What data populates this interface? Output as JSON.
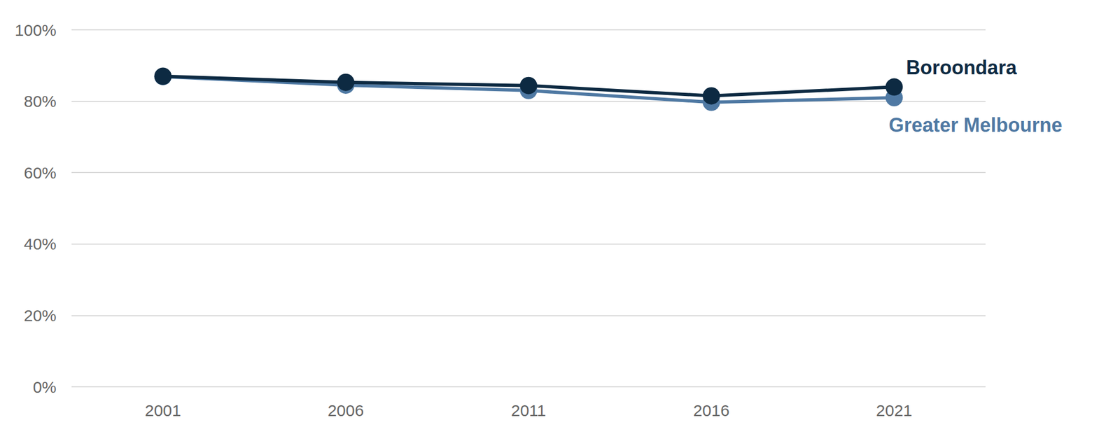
{
  "chart_data": {
    "type": "line",
    "categories": [
      "2001",
      "2006",
      "2011",
      "2016",
      "2021"
    ],
    "series": [
      {
        "name": "Boroondara",
        "color": "#0d2a42",
        "values": [
          87.0,
          85.3,
          84.4,
          81.5,
          84.0
        ],
        "marker": "circle"
      },
      {
        "name": "Greater Melbourne",
        "color": "#4f79a3",
        "values": [
          86.9,
          84.5,
          83.0,
          79.7,
          81.0
        ],
        "marker": "circle"
      }
    ],
    "ylim": [
      0,
      100
    ],
    "yticks": [
      {
        "value": 0,
        "label": "0%"
      },
      {
        "value": 20,
        "label": "20%"
      },
      {
        "value": 40,
        "label": "40%"
      },
      {
        "value": 60,
        "label": "60%"
      },
      {
        "value": 80,
        "label": "80%"
      },
      {
        "value": 100,
        "label": "100%"
      }
    ],
    "grid": true
  }
}
